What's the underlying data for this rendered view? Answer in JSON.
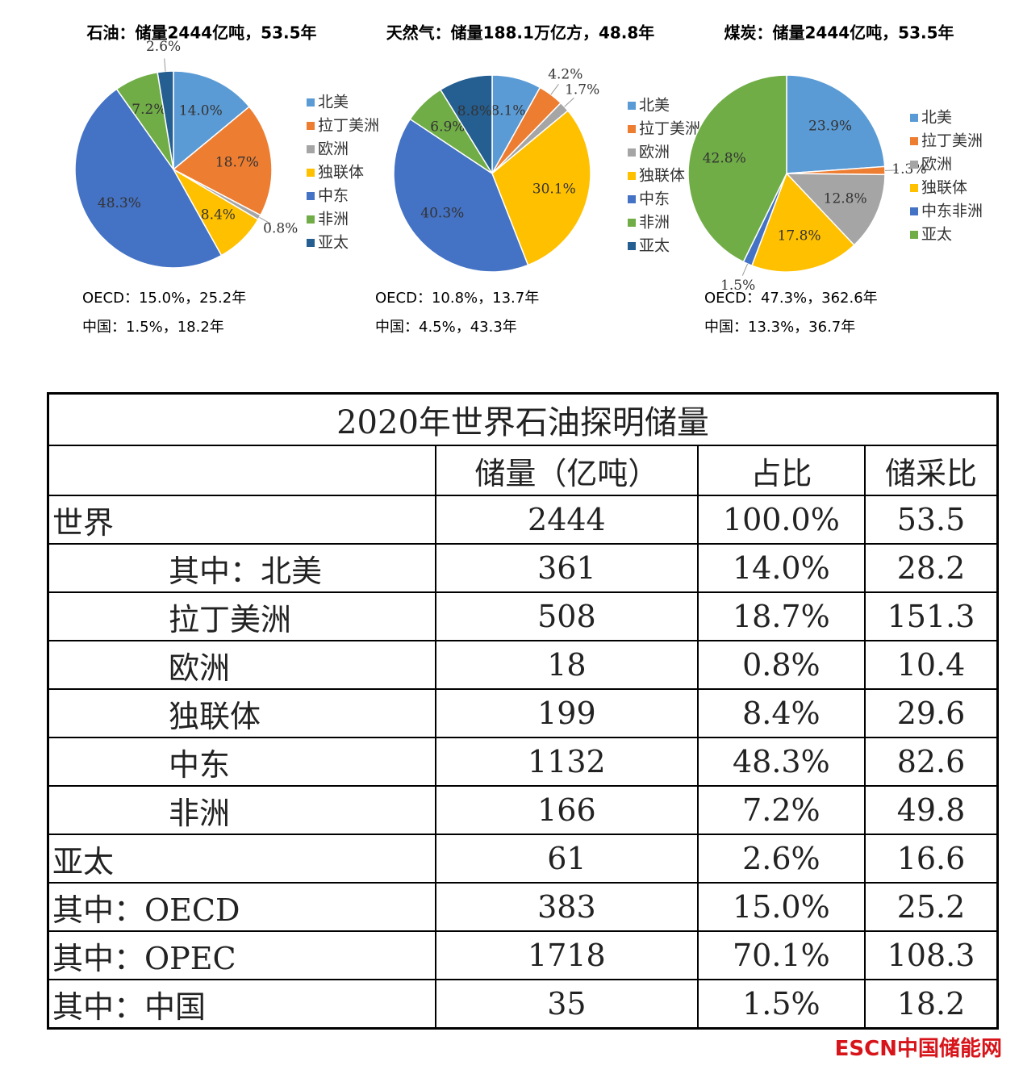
{
  "chart_data": [
    {
      "type": "pie",
      "title": "石油：储量2444亿吨，53.5年",
      "categories": [
        "北美",
        "拉丁美洲",
        "欧洲",
        "独联体",
        "中东",
        "非洲",
        "亚太"
      ],
      "values": [
        14.0,
        18.7,
        0.8,
        8.4,
        48.3,
        7.2,
        2.6
      ],
      "value_labels": [
        "14.0%",
        "18.7%",
        "0.8%",
        "8.4%",
        "48.3%",
        "7.2%",
        "2.6%"
      ],
      "colors": [
        "#5b9bd5",
        "#ed7d31",
        "#a5a5a5",
        "#ffc000",
        "#4472c4",
        "#70ad47",
        "#255e91"
      ],
      "notes": [
        "OECD：15.0%，25.2年",
        "中国：1.5%，18.2年"
      ]
    },
    {
      "type": "pie",
      "title": "天然气：储量188.1万亿方，48.8年",
      "categories": [
        "北美",
        "拉丁美洲",
        "欧洲",
        "独联体",
        "中东",
        "非洲",
        "亚太"
      ],
      "values": [
        8.1,
        4.2,
        1.7,
        30.1,
        40.3,
        6.9,
        8.8
      ],
      "value_labels": [
        "8.1%",
        "4.2%",
        "1.7%",
        "30.1%",
        "40.3%",
        "6.9%",
        "8.8%"
      ],
      "colors": [
        "#5b9bd5",
        "#ed7d31",
        "#a5a5a5",
        "#ffc000",
        "#4472c4",
        "#70ad47",
        "#255e91"
      ],
      "notes": [
        "OECD：10.8%，13.7年",
        "中国：4.5%，43.3年"
      ]
    },
    {
      "type": "pie",
      "title": "煤炭：储量2444亿吨，53.5年",
      "categories": [
        "北美",
        "拉丁美洲",
        "欧洲",
        "独联体",
        "中东非洲",
        "亚太"
      ],
      "values": [
        23.9,
        1.3,
        12.8,
        17.8,
        1.5,
        42.8
      ],
      "value_labels": [
        "23.9%",
        "1.3%",
        "12.8%",
        "17.8%",
        "1.5%",
        "42.8%"
      ],
      "colors": [
        "#5b9bd5",
        "#ed7d31",
        "#a5a5a5",
        "#ffc000",
        "#4472c4",
        "#70ad47"
      ],
      "notes": [
        "OECD：47.3%，362.6年",
        "中国：13.3%，36.7年"
      ]
    }
  ],
  "table": {
    "title": "2020年世界石油探明储量",
    "header": [
      "储量（亿吨）",
      "占比",
      "储采比"
    ],
    "rows": [
      [
        "世界",
        "2444",
        "100.0%",
        "53.5"
      ],
      [
        "其中：北美",
        "361",
        "14.0%",
        "28.2"
      ],
      [
        "拉丁美洲",
        "508",
        "18.7%",
        "151.3"
      ],
      [
        "欧洲",
        "18",
        "0.8%",
        "10.4"
      ],
      [
        "独联体",
        "199",
        "8.4%",
        "29.6"
      ],
      [
        "中东",
        "1132",
        "48.3%",
        "82.6"
      ],
      [
        "非洲",
        "166",
        "7.2%",
        "49.8"
      ],
      [
        "亚太",
        "61",
        "2.6%",
        "16.6"
      ],
      [
        "其中：OECD",
        "383",
        "15.0%",
        "25.2"
      ],
      [
        "其中：OPEC",
        "1718",
        "70.1%",
        "108.3"
      ],
      [
        "其中：中国",
        "35",
        "1.5%",
        "18.2"
      ]
    ]
  },
  "watermark": {
    "brand": "ESCN",
    "name": "中国储能网"
  }
}
